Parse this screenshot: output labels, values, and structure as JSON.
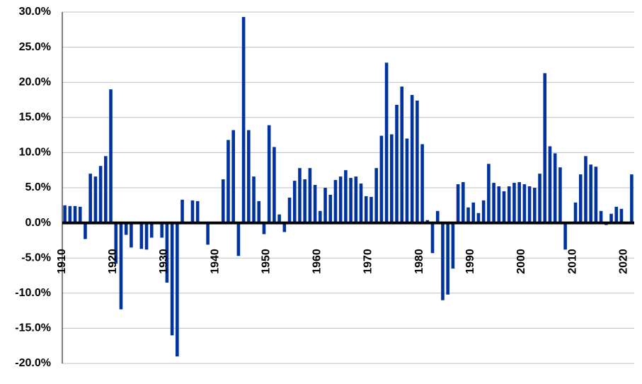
{
  "chart_data": {
    "type": "bar",
    "categories": [
      "1910",
      null,
      null,
      null,
      null,
      null,
      null,
      null,
      null,
      null,
      "1920",
      null,
      null,
      null,
      null,
      null,
      null,
      null,
      null,
      null,
      "1930",
      null,
      null,
      null,
      null,
      null,
      null,
      null,
      null,
      null,
      "1940",
      null,
      null,
      null,
      null,
      null,
      null,
      null,
      null,
      null,
      "1950",
      null,
      null,
      null,
      null,
      null,
      null,
      null,
      null,
      null,
      "1960",
      null,
      null,
      null,
      null,
      null,
      null,
      null,
      null,
      null,
      "1970",
      null,
      null,
      null,
      null,
      null,
      null,
      null,
      null,
      null,
      "1980",
      null,
      null,
      null,
      null,
      null,
      null,
      null,
      null,
      null,
      "1990",
      null,
      null,
      null,
      null,
      null,
      null,
      null,
      null,
      null,
      "2000",
      null,
      null,
      null,
      null,
      null,
      null,
      null,
      null,
      null,
      "2010",
      null,
      null,
      null,
      null,
      null,
      null,
      null,
      null,
      null,
      "2020",
      null
    ],
    "values": [
      2.5,
      2.4,
      2.4,
      2.3,
      -2.3,
      7.0,
      6.6,
      8.1,
      9.5,
      19.0,
      -5.8,
      -12.3,
      -1.7,
      -3.5,
      0,
      -3.7,
      -3.8,
      -2.1,
      0,
      -2.1,
      -8.5,
      -16.0,
      -19.0,
      3.3,
      0,
      3.2,
      3.1,
      0,
      -3.1,
      0,
      0,
      6.2,
      11.8,
      13.2,
      -4.7,
      29.3,
      13.2,
      6.6,
      3.1,
      -1.6,
      13.9,
      10.8,
      1.2,
      -1.3,
      3.6,
      6.0,
      7.8,
      6.2,
      7.8,
      5.4,
      1.7,
      5.0,
      4.0,
      6.1,
      6.6,
      7.5,
      6.4,
      6.6,
      5.6,
      3.8,
      3.7,
      7.8,
      12.4,
      22.8,
      12.6,
      16.8,
      19.4,
      12.0,
      18.2,
      17.4,
      11.2,
      0.4,
      -4.3,
      1.7,
      -11.0,
      -10.2,
      -6.5,
      5.5,
      5.8,
      2.2,
      2.9,
      1.4,
      3.2,
      8.4,
      5.7,
      5.2,
      4.5,
      5.2,
      5.7,
      5.8,
      5.5,
      5.2,
      5.0,
      7.0,
      21.3,
      10.9,
      9.9,
      7.9,
      -3.8,
      0,
      2.9,
      6.9,
      9.5,
      8.3,
      8.0,
      1.7,
      -0.3,
      1.3,
      2.3,
      2.0,
      0,
      6.9
    ],
    "color": "#0033a0",
    "ylim": [
      -20,
      30
    ],
    "yticks": [
      {
        "value": -20,
        "label": "-20.0%"
      },
      {
        "value": -15,
        "label": "-15.0%"
      },
      {
        "value": -10,
        "label": "-10.0%"
      },
      {
        "value": -5,
        "label": "-5.0%"
      },
      {
        "value": 0,
        "label": "0.0%"
      },
      {
        "value": 5,
        "label": "5.0%"
      },
      {
        "value": 10,
        "label": "10.0%"
      },
      {
        "value": 15,
        "label": "15.0%"
      },
      {
        "value": 20,
        "label": "20.0%"
      },
      {
        "value": 25,
        "label": "25.0%"
      },
      {
        "value": 30,
        "label": "30.0%"
      }
    ],
    "grid": true
  }
}
